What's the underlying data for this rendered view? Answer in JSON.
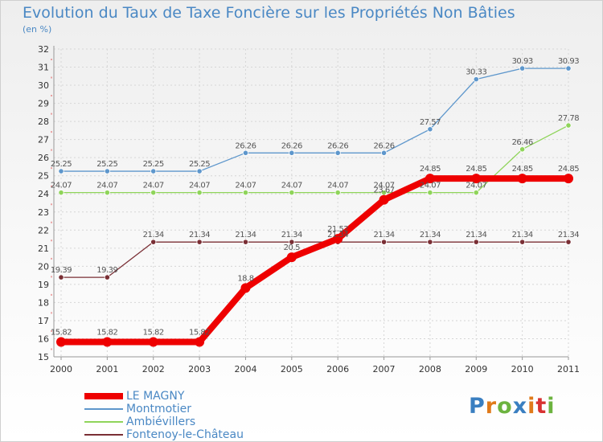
{
  "chart_data": {
    "type": "line",
    "title": "Evolution du Taux de Taxe Foncière sur les Propriétés Non Bâties",
    "ylabel": "(en %)",
    "xlabel": "",
    "ylim": [
      15,
      32
    ],
    "yticks": [
      "15",
      "16",
      "17",
      "18",
      "19",
      "20",
      "21",
      "22",
      "23",
      "24",
      "25",
      "26",
      "27",
      "28",
      "29",
      "30",
      "31",
      "32"
    ],
    "categories": [
      "2000",
      "2001",
      "2002",
      "2003",
      "2004",
      "2005",
      "2006",
      "2007",
      "2008",
      "2009",
      "2010",
      "2011"
    ],
    "series": [
      {
        "name": "Montmotier",
        "color": "#5e97cc",
        "values": [
          25.25,
          25.25,
          25.25,
          25.25,
          26.26,
          26.26,
          26.26,
          26.26,
          27.57,
          30.33,
          30.93,
          30.93
        ],
        "labels": [
          "25.25",
          "25.25",
          "25.25",
          "25.25",
          "26.26",
          "26.26",
          "26.26",
          "26.26",
          "27.57",
          "30.33",
          "30.93",
          "30.93"
        ]
      },
      {
        "name": "Ambiévillers",
        "color": "#8fd45a",
        "values": [
          24.07,
          24.07,
          24.07,
          24.07,
          24.07,
          24.07,
          24.07,
          24.07,
          24.07,
          24.07,
          26.46,
          27.78
        ],
        "labels": [
          "24.07",
          "24.07",
          "24.07",
          "24.07",
          "24.07",
          "24.07",
          "24.07",
          "24.07",
          "24.07",
          "24.07",
          "26.46",
          "27.78"
        ]
      },
      {
        "name": "Fontenoy-le-Château",
        "color": "#7a2f35",
        "values": [
          19.39,
          19.39,
          21.34,
          21.34,
          21.34,
          21.34,
          21.34,
          21.34,
          21.34,
          21.34,
          21.34,
          21.34
        ],
        "labels": [
          "19.39",
          "19.39",
          "21.34",
          "21.34",
          "21.34",
          "21.34",
          "21.34",
          "21.34",
          "21.34",
          "21.34",
          "21.34",
          "21.34"
        ]
      },
      {
        "name": "LE MAGNY",
        "color": "#ee0000",
        "values": [
          15.82,
          15.82,
          15.82,
          15.82,
          18.8,
          20.5,
          21.52,
          23.67,
          24.85,
          24.85,
          24.85,
          24.85
        ],
        "labels": [
          "15.82",
          "15.82",
          "15.82",
          "15.82",
          "18.8",
          "20.5",
          "21.52",
          "23.67",
          "24.85",
          "24.85",
          "24.85",
          "24.85"
        ]
      }
    ]
  },
  "legend": [
    {
      "label": "LE MAGNY",
      "color": "#ee0000"
    },
    {
      "label": "Montmotier",
      "color": "#5e97cc"
    },
    {
      "label": "Ambiévillers",
      "color": "#8fd45a"
    },
    {
      "label": "Fontenoy-le-Château",
      "color": "#7a2f35"
    }
  ],
  "logo": {
    "letters": [
      "P",
      "r",
      "o",
      "x",
      "i",
      "t",
      "i"
    ],
    "colors": [
      "#3a7fc1",
      "#e07a1a",
      "#6cb33f",
      "#3a7fc1",
      "#e07a1a",
      "#d83232",
      "#6cb33f"
    ]
  }
}
